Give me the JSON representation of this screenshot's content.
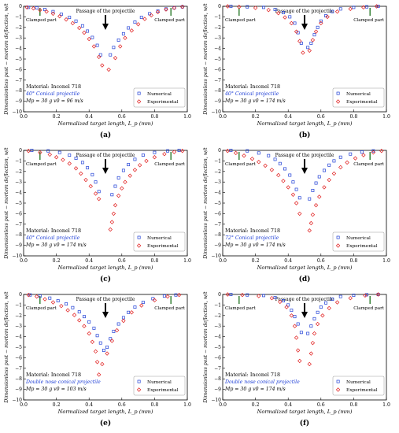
{
  "chart_data": [
    {
      "panel": "(a)",
      "type": "scatter",
      "xlabel": "Normalized target length, L_p (mm)",
      "ylabel": "Dimensionless post − mortem deflection, w/t",
      "xlim": [
        0.0,
        1.0
      ],
      "ylim": [
        -10,
        0
      ],
      "xticks": [
        "0.0",
        "0.2",
        "0.4",
        "0.6",
        "0.8",
        "1.0"
      ],
      "yticks": [
        "0",
        "−1",
        "−2",
        "−3",
        "−4",
        "−5",
        "−6",
        "−7",
        "−8",
        "−9",
        "−10"
      ],
      "legend_position": "lower-right",
      "annotations": {
        "passage": "Passage of the projectile",
        "clamped_left": "Clamped part",
        "clamped_right": "Clamped part"
      },
      "info": {
        "material": "Material: Inconel 718",
        "projectile": "40° Conical projectile",
        "params": "Mp = 30 g    v0 ≈ 96 m/s"
      },
      "series": [
        {
          "name": "Numerical",
          "x": [
            0.03,
            0.08,
            0.13,
            0.18,
            0.23,
            0.28,
            0.32,
            0.36,
            0.39,
            0.42,
            0.45,
            0.47,
            0.53,
            0.55,
            0.58,
            0.61,
            0.64,
            0.68,
            0.72,
            0.77,
            0.82,
            0.87,
            0.92,
            0.97
          ],
          "y": [
            -0.1,
            -0.15,
            -0.3,
            -0.5,
            -0.75,
            -1.05,
            -1.4,
            -1.85,
            -2.35,
            -2.95,
            -3.7,
            -4.6,
            -4.6,
            -3.9,
            -3.2,
            -2.6,
            -2.05,
            -1.5,
            -1.05,
            -0.7,
            -0.45,
            -0.25,
            -0.15,
            -0.05
          ]
        },
        {
          "name": "Experimental",
          "x": [
            0.02,
            0.06,
            0.1,
            0.14,
            0.18,
            0.22,
            0.26,
            0.3,
            0.34,
            0.37,
            0.4,
            0.43,
            0.46,
            0.48,
            0.52,
            0.56,
            0.59,
            0.62,
            0.66,
            0.7,
            0.74,
            0.78,
            0.82,
            0.87,
            0.92,
            0.97
          ],
          "y": [
            -0.1,
            -0.2,
            -0.35,
            -0.5,
            -0.7,
            -0.95,
            -1.25,
            -1.6,
            -2.05,
            -2.5,
            -3.1,
            -3.8,
            -4.8,
            -5.6,
            -6.0,
            -4.9,
            -3.8,
            -3.0,
            -2.3,
            -1.7,
            -1.2,
            -0.85,
            -0.55,
            -0.3,
            -0.15,
            -0.05
          ]
        }
      ]
    },
    {
      "panel": "(b)",
      "type": "scatter",
      "xlabel": "Normalized target length, L_p (mm)",
      "ylabel": "Dimensionless post − mortem deflection, w/t",
      "xlim": [
        0.0,
        1.0
      ],
      "ylim": [
        -10,
        0
      ],
      "xticks": [
        "0.0",
        "0.2",
        "0.4",
        "0.6",
        "0.8",
        "1.0"
      ],
      "yticks": [
        "0",
        "−1",
        "−2",
        "−3",
        "−4",
        "−5",
        "−6",
        "−7",
        "−8",
        "−9",
        "−10"
      ],
      "legend_position": "lower-right",
      "annotations": {
        "passage": "Passage of the projectile",
        "clamped_left": "Clamped part",
        "clamped_right": "Clamped part"
      },
      "info": {
        "material": "Material: Inconel 718",
        "projectile": "40° Conical projectile",
        "params": "Mp = 30 g    v0 ≈ 174 m/s"
      },
      "series": [
        {
          "name": "Numerical",
          "x": [
            0.05,
            0.15,
            0.25,
            0.32,
            0.37,
            0.41,
            0.44,
            0.46,
            0.48,
            0.52,
            0.54,
            0.56,
            0.58,
            0.6,
            0.63,
            0.67,
            0.72,
            0.8,
            0.88,
            0.95
          ],
          "y": [
            0,
            -0.05,
            -0.1,
            -0.3,
            -0.6,
            -1.0,
            -1.6,
            -2.5,
            -3.5,
            -3.9,
            -3.5,
            -2.7,
            -2.0,
            -1.4,
            -0.9,
            -0.5,
            -0.25,
            -0.1,
            -0.05,
            0
          ]
        },
        {
          "name": "Experimental",
          "x": [
            0.03,
            0.1,
            0.2,
            0.28,
            0.34,
            0.38,
            0.42,
            0.45,
            0.47,
            0.49,
            0.53,
            0.55,
            0.57,
            0.6,
            0.64,
            0.7,
            0.78,
            0.86,
            0.94
          ],
          "y": [
            0,
            -0.05,
            -0.15,
            -0.35,
            -0.65,
            -1.05,
            -1.6,
            -2.4,
            -3.3,
            -4.4,
            -4.2,
            -3.2,
            -2.4,
            -1.6,
            -1.0,
            -0.5,
            -0.25,
            -0.1,
            0
          ]
        }
      ]
    },
    {
      "panel": "(c)",
      "type": "scatter",
      "xlabel": "Normalized target length, L_p (mm)",
      "ylabel": "Dimensionless post − mortem deflection, w/t",
      "xlim": [
        0.0,
        1.0
      ],
      "ylim": [
        -10,
        0
      ],
      "xticks": [
        "0.0",
        "0.2",
        "0.4",
        "0.6",
        "0.8",
        "1.0"
      ],
      "yticks": [
        "0",
        "−1",
        "−2",
        "−3",
        "−4",
        "−5",
        "−6",
        "−7",
        "−8",
        "−9",
        "−10"
      ],
      "legend_position": "lower-right",
      "annotations": {
        "passage": "Passage of the projectile",
        "clamped_left": "Clamped part",
        "clamped_right": "Clamped part"
      },
      "info": {
        "material": "Material: Inconel 718",
        "projectile": "40° Conical projectile",
        "params": "Mp = 30 g    v0 ≈ 174 m/s"
      },
      "series": [
        {
          "name": "Numerical",
          "x": [
            0.05,
            0.15,
            0.22,
            0.28,
            0.32,
            0.36,
            0.39,
            0.42,
            0.44,
            0.46,
            0.54,
            0.56,
            0.58,
            0.61,
            0.64,
            0.68,
            0.73,
            0.8,
            0.88,
            0.95
          ],
          "y": [
            0,
            -0.05,
            -0.2,
            -0.45,
            -0.75,
            -1.15,
            -1.65,
            -2.3,
            -3.0,
            -3.9,
            -4.2,
            -3.4,
            -2.6,
            -1.9,
            -1.35,
            -0.85,
            -0.45,
            -0.2,
            -0.05,
            0
          ]
        },
        {
          "name": "Experimental",
          "x": [
            0.03,
            0.1,
            0.16,
            0.2,
            0.24,
            0.28,
            0.32,
            0.35,
            0.38,
            0.41,
            0.44,
            0.46,
            0.53,
            0.54,
            0.55,
            0.56,
            0.58,
            0.6,
            0.62,
            0.65,
            0.68,
            0.71,
            0.75,
            0.8,
            0.86,
            0.92,
            0.97
          ],
          "y": [
            -0.05,
            -0.2,
            -0.4,
            -0.65,
            -0.9,
            -1.25,
            -1.7,
            -2.2,
            -2.8,
            -3.4,
            -4.1,
            -4.6,
            -7.5,
            -6.8,
            -6.0,
            -5.2,
            -4.3,
            -3.6,
            -3.0,
            -2.4,
            -1.85,
            -1.4,
            -1.0,
            -0.65,
            -0.35,
            -0.15,
            -0.05
          ]
        }
      ]
    },
    {
      "panel": "(d)",
      "type": "scatter",
      "xlabel": "Normalized target length, L_p (mm)",
      "ylabel": "Dimensionless post − mortem deflection, w/t",
      "xlim": [
        0.0,
        1.0
      ],
      "ylim": [
        -10,
        0
      ],
      "xticks": [
        "0.0",
        "0.2",
        "0.4",
        "0.6",
        "0.8",
        "1.0"
      ],
      "yticks": [
        "0",
        "−1",
        "−2",
        "−3",
        "−4",
        "−5",
        "−6",
        "−7",
        "−8",
        "−9",
        "−10"
      ],
      "legend_position": "lower-right",
      "annotations": {
        "passage": "Passage of the projectile",
        "clamped_left": "Clamped part",
        "clamped_right": "Clamped part"
      },
      "info": {
        "material": "Material: Inconel 718",
        "projectile": "72° Conical projectile",
        "params": "Mp = 30 g    v0 ≈ 174 m/s"
      },
      "series": [
        {
          "name": "Numerical",
          "x": [
            0.05,
            0.15,
            0.22,
            0.28,
            0.32,
            0.35,
            0.38,
            0.41,
            0.43,
            0.45,
            0.47,
            0.53,
            0.55,
            0.57,
            0.59,
            0.62,
            0.65,
            0.68,
            0.72,
            0.78,
            0.85,
            0.92
          ],
          "y": [
            0,
            -0.05,
            -0.25,
            -0.5,
            -0.85,
            -1.25,
            -1.75,
            -2.35,
            -3.0,
            -3.7,
            -4.5,
            -4.6,
            -3.8,
            -3.1,
            -2.5,
            -1.9,
            -1.4,
            -1.0,
            -0.65,
            -0.35,
            -0.15,
            -0.05
          ]
        },
        {
          "name": "Experimental",
          "x": [
            0.03,
            0.08,
            0.13,
            0.18,
            0.22,
            0.26,
            0.3,
            0.34,
            0.37,
            0.4,
            0.43,
            0.45,
            0.47,
            0.53,
            0.54,
            0.55,
            0.57,
            0.59,
            0.62,
            0.65,
            0.68,
            0.72,
            0.76,
            0.81,
            0.86,
            0.92,
            0.97
          ],
          "y": [
            -0.05,
            -0.25,
            -0.5,
            -0.8,
            -1.1,
            -1.45,
            -1.85,
            -2.35,
            -2.9,
            -3.5,
            -4.2,
            -5.0,
            -6.0,
            -7.6,
            -6.9,
            -6.1,
            -5.2,
            -4.4,
            -3.5,
            -2.8,
            -2.2,
            -1.6,
            -1.15,
            -0.75,
            -0.45,
            -0.2,
            -0.05
          ]
        }
      ]
    },
    {
      "panel": "(e)",
      "type": "scatter",
      "xlabel": "Normalized target length, L_p (mm)",
      "ylabel": "Dimensionless post − mortem deflection, w/t",
      "xlim": [
        0.0,
        1.0
      ],
      "ylim": [
        -10,
        0
      ],
      "xticks": [
        "0.0",
        "0.2",
        "0.4",
        "0.6",
        "0.8",
        "1.0"
      ],
      "yticks": [
        "0",
        "−1",
        "−2",
        "−3",
        "−4",
        "−5",
        "−6",
        "−7",
        "−8",
        "−9",
        "−10"
      ],
      "legend_position": "lower-right",
      "annotations": {
        "passage": "Passage of the projectile",
        "clamped_left": "Clamped part",
        "clamped_right": "Clamped part"
      },
      "info": {
        "material": "Material: Inconel 718",
        "projectile": "Double nose conical projectile",
        "params": "Mp = 30 g    v0 ≈ 103 m/s"
      },
      "series": [
        {
          "name": "Numerical",
          "x": [
            0.04,
            0.1,
            0.16,
            0.21,
            0.26,
            0.3,
            0.34,
            0.37,
            0.4,
            0.43,
            0.45,
            0.47,
            0.49,
            0.51,
            0.53,
            0.55,
            0.58,
            0.61,
            0.64,
            0.68,
            0.73,
            0.79,
            0.86,
            0.93
          ],
          "y": [
            -0.05,
            -0.15,
            -0.35,
            -0.6,
            -0.9,
            -1.25,
            -1.65,
            -2.1,
            -2.6,
            -3.2,
            -3.9,
            -4.6,
            -5.3,
            -5.0,
            -4.2,
            -3.5,
            -2.8,
            -2.2,
            -1.7,
            -1.2,
            -0.75,
            -0.4,
            -0.15,
            -0.05
          ]
        },
        {
          "name": "Experimental",
          "x": [
            0.03,
            0.08,
            0.13,
            0.18,
            0.23,
            0.27,
            0.31,
            0.34,
            0.37,
            0.4,
            0.42,
            0.44,
            0.45,
            0.46,
            0.48,
            0.51,
            0.54,
            0.57,
            0.61,
            0.66,
            0.72,
            0.8,
            0.88,
            0.95
          ],
          "y": [
            -0.05,
            -0.2,
            -0.45,
            -0.75,
            -1.1,
            -1.5,
            -1.95,
            -2.45,
            -3.0,
            -3.7,
            -4.5,
            -5.4,
            -6.4,
            -7.6,
            -6.6,
            -5.6,
            -4.4,
            -3.4,
            -2.5,
            -1.7,
            -1.05,
            -0.55,
            -0.2,
            -0.05
          ]
        }
      ]
    },
    {
      "panel": "(f)",
      "type": "scatter",
      "xlabel": "Normalized target length, L_p (mm)",
      "ylabel": "Dimensionless post − mortem deflection, w/t",
      "xlim": [
        0.0,
        1.0
      ],
      "ylim": [
        -10,
        0
      ],
      "xticks": [
        "0.0",
        "0.2",
        "0.4",
        "0.6",
        "0.8",
        "1.0"
      ],
      "yticks": [
        "0",
        "−1",
        "−2",
        "−3",
        "−4",
        "−5",
        "−6",
        "−7",
        "−8",
        "−9",
        "−10"
      ],
      "legend_position": "lower-right",
      "annotations": {
        "passage": "Passage of the projectile",
        "clamped_left": "Clamped part",
        "clamped_right": "Clamped part"
      },
      "info": {
        "material": "Material: Inconel 718",
        "projectile": "Double nose conical projectile",
        "params": "Mp = 30 g    v0 ≈ 174 m/s"
      },
      "series": [
        {
          "name": "Numerical",
          "x": [
            0.05,
            0.15,
            0.25,
            0.32,
            0.37,
            0.4,
            0.42,
            0.44,
            0.46,
            0.48,
            0.52,
            0.54,
            0.56,
            0.58,
            0.6,
            0.63,
            0.67,
            0.72,
            0.8,
            0.88,
            0.95
          ],
          "y": [
            0,
            -0.05,
            -0.1,
            -0.3,
            -0.6,
            -1.0,
            -1.5,
            -2.1,
            -2.8,
            -3.6,
            -3.7,
            -3.0,
            -2.3,
            -1.7,
            -1.2,
            -0.8,
            -0.45,
            -0.2,
            -0.08,
            -0.03,
            0
          ]
        },
        {
          "name": "Experimental",
          "x": [
            0.03,
            0.12,
            0.22,
            0.3,
            0.35,
            0.39,
            0.42,
            0.44,
            0.45,
            0.46,
            0.47,
            0.53,
            0.54,
            0.55,
            0.56,
            0.58,
            0.61,
            0.65,
            0.7,
            0.78,
            0.87,
            0.95
          ],
          "y": [
            0,
            -0.05,
            -0.15,
            -0.35,
            -0.7,
            -1.2,
            -2.0,
            -3.0,
            -4.1,
            -5.3,
            -6.3,
            -6.6,
            -5.6,
            -4.6,
            -3.7,
            -2.8,
            -2.0,
            -1.3,
            -0.75,
            -0.35,
            -0.1,
            0
          ]
        }
      ]
    }
  ]
}
